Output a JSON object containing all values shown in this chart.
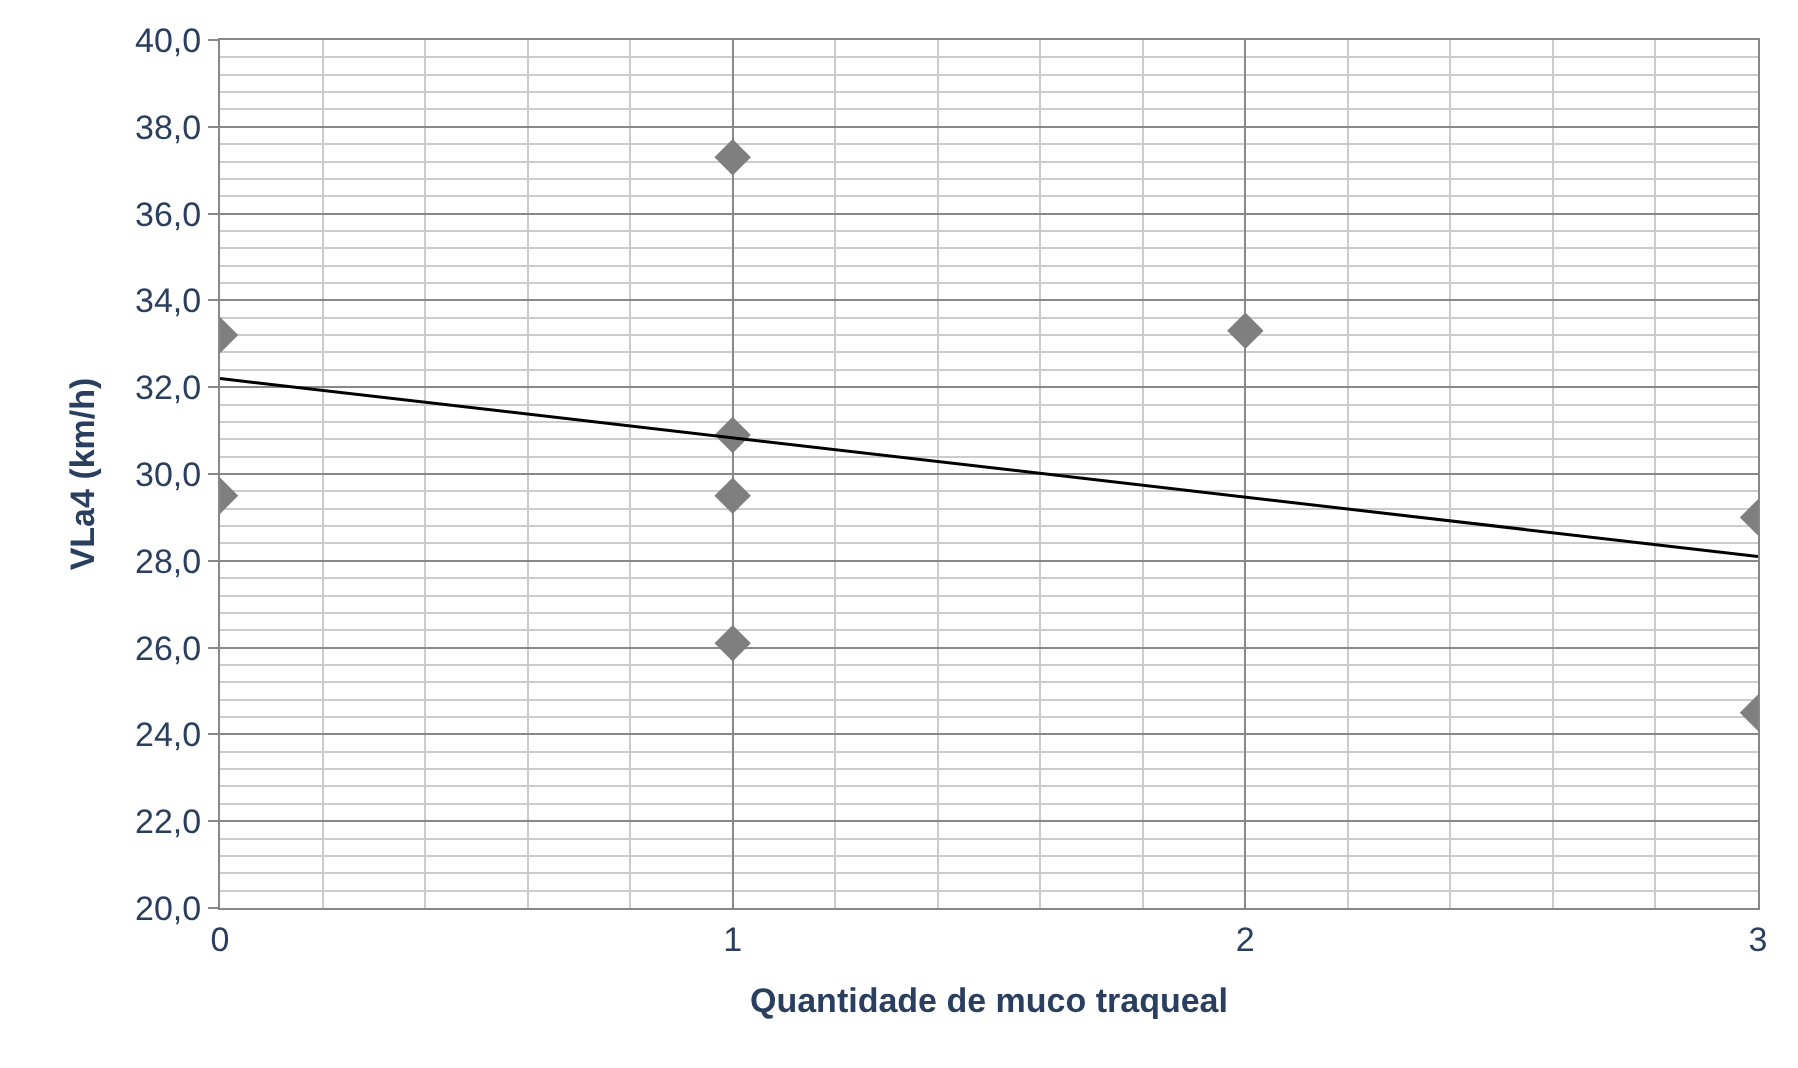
{
  "chart_data": {
    "type": "scatter",
    "xlabel": "Quantidade de muco traqueal",
    "ylabel": "VLa4 (km/h)",
    "xlim": [
      0,
      3
    ],
    "xticks": [
      0,
      1,
      2,
      3
    ],
    "ylim": [
      20,
      40
    ],
    "yticks": [
      {
        "value": 20,
        "label": "20,0"
      },
      {
        "value": 22,
        "label": "22,0"
      },
      {
        "value": 24,
        "label": "24,0"
      },
      {
        "value": 26,
        "label": "26,0"
      },
      {
        "value": 28,
        "label": "28,0"
      },
      {
        "value": 30,
        "label": "30,0"
      },
      {
        "value": 32,
        "label": "32,0"
      },
      {
        "value": 34,
        "label": "34,0"
      },
      {
        "value": 36,
        "label": "36,0"
      },
      {
        "value": 38,
        "label": "38,0"
      },
      {
        "value": 40,
        "label": "40,0"
      }
    ],
    "grid": true,
    "legend": false,
    "marker": "diamond",
    "series": [
      {
        "color": "#7f7f7f",
        "x": [
          0,
          0,
          1,
          1,
          1,
          1,
          2,
          3,
          3
        ],
        "values": [
          33.2,
          29.5,
          37.3,
          30.9,
          29.5,
          26.1,
          33.3,
          29.0,
          24.5
        ]
      },
      {
        "type": "line",
        "color": "#000000",
        "x": [
          0,
          3
        ],
        "values": [
          32.2,
          28.1
        ],
        "marker": "none"
      }
    ]
  }
}
